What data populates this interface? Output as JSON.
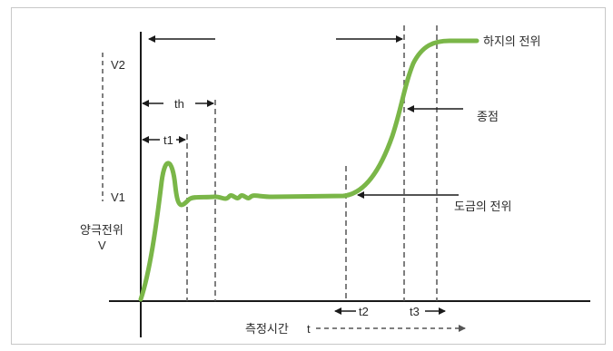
{
  "diagram": {
    "labels": {
      "v2": "V2",
      "v1": "V1",
      "anode_potential": "양극전위",
      "v_symbol": "V",
      "th": "th",
      "t1": "t1",
      "t2": "t2",
      "t3": "t3",
      "substrate_potential": "하지의 전위",
      "end_point": "종점",
      "plating_potential": "도금의 전위",
      "measure_time": "측정시간",
      "t_symbol": "t"
    },
    "colors": {
      "curve": "#7ab648",
      "axis": "#1a1a1a",
      "dashed": "#555555",
      "border": "#c8c8c8"
    }
  }
}
